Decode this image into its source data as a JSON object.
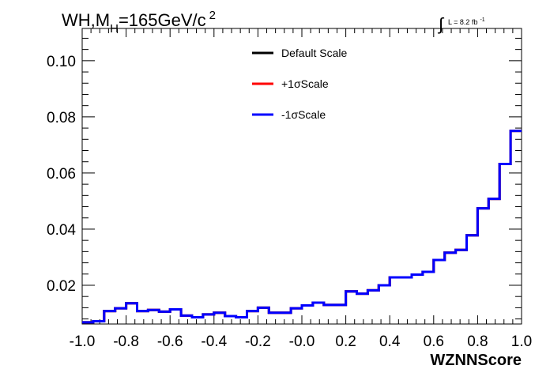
{
  "chart_data": {
    "type": "line",
    "title": {
      "main": "WH,M",
      "sub": "H",
      "rest": "=165GeV/c",
      "sup": "2"
    },
    "luminosity": {
      "symbol": "∫",
      "text": "L = 8.2 fb",
      "sup": "-1"
    },
    "xlabel": "WZNNScore",
    "ylabel": "",
    "xlim": [
      -1.0,
      1.0
    ],
    "ylim": [
      0.0062,
      0.1115
    ],
    "xticks": [
      -1.0,
      -0.8,
      -0.6,
      -0.4,
      -0.2,
      0.0,
      0.2,
      0.4,
      0.6,
      0.8,
      1.0
    ],
    "xtick_labels": [
      "-1.0",
      "-0.8",
      "-0.6",
      "-0.4",
      "-0.2",
      "-0.0",
      "0.2",
      "0.4",
      "0.6",
      "0.8",
      "1.0"
    ],
    "yticks": [
      0.02,
      0.04,
      0.06,
      0.08,
      0.1
    ],
    "ytick_labels": [
      "0.02",
      "0.04",
      "0.06",
      "0.08",
      "0.10"
    ],
    "grid": false,
    "legend_position": "top-center",
    "bin_edges": [
      -1.0,
      -0.95,
      -0.9,
      -0.85,
      -0.8,
      -0.75,
      -0.7,
      -0.65,
      -0.6,
      -0.55,
      -0.5,
      -0.45,
      -0.4,
      -0.35,
      -0.3,
      -0.25,
      -0.2,
      -0.15,
      -0.1,
      -0.05,
      0.0,
      0.05,
      0.1,
      0.15,
      0.2,
      0.25,
      0.3,
      0.35,
      0.4,
      0.45,
      0.5,
      0.55,
      0.6,
      0.65,
      0.7,
      0.75,
      0.8,
      0.85,
      0.9,
      0.95,
      1.0
    ],
    "series": [
      {
        "name": "Default Scale",
        "color": "#000000",
        "values": [
          0.0068,
          0.0072,
          0.0108,
          0.0118,
          0.0136,
          0.0108,
          0.0112,
          0.0106,
          0.0114,
          0.0092,
          0.0086,
          0.0096,
          0.0102,
          0.009,
          0.0086,
          0.0108,
          0.012,
          0.0102,
          0.0102,
          0.0118,
          0.0128,
          0.0138,
          0.013,
          0.013,
          0.0178,
          0.017,
          0.0182,
          0.02,
          0.0228,
          0.0228,
          0.0238,
          0.0248,
          0.029,
          0.0316,
          0.0326,
          0.0378,
          0.0474,
          0.0508,
          0.0632,
          0.075
        ]
      },
      {
        "name": "+1σScale",
        "color": "#ff0000",
        "values": [
          0.0068,
          0.0072,
          0.0108,
          0.0118,
          0.0136,
          0.0108,
          0.0112,
          0.0106,
          0.0114,
          0.0092,
          0.0086,
          0.0096,
          0.0102,
          0.009,
          0.0086,
          0.0108,
          0.012,
          0.0102,
          0.0102,
          0.0118,
          0.0128,
          0.0138,
          0.013,
          0.013,
          0.0178,
          0.017,
          0.0182,
          0.02,
          0.0228,
          0.0228,
          0.0238,
          0.0248,
          0.029,
          0.0316,
          0.0326,
          0.0378,
          0.0474,
          0.0508,
          0.0632,
          0.075
        ]
      },
      {
        "name": "-1σScale",
        "color": "#0000ff",
        "values": [
          0.0068,
          0.0072,
          0.0108,
          0.0118,
          0.0136,
          0.0108,
          0.0112,
          0.0106,
          0.0114,
          0.0092,
          0.0086,
          0.0096,
          0.0102,
          0.009,
          0.0086,
          0.0108,
          0.012,
          0.0102,
          0.0102,
          0.0118,
          0.0128,
          0.0138,
          0.013,
          0.013,
          0.0178,
          0.017,
          0.0182,
          0.02,
          0.0228,
          0.0228,
          0.0238,
          0.0248,
          0.029,
          0.0316,
          0.0326,
          0.0378,
          0.0474,
          0.0508,
          0.0632,
          0.075
        ]
      }
    ]
  }
}
